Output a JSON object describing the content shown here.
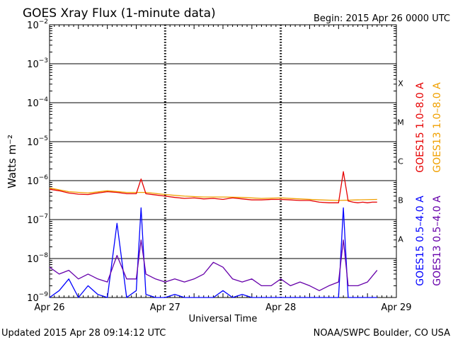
{
  "header": {
    "title": "GOES Xray Flux (1-minute data)",
    "begin": "Begin:  2015 Apr 26 0000 UTC"
  },
  "footer": {
    "updated": "Updated 2015 Apr 28 09:14:12 UTC",
    "credit": "NOAA/SWPC Boulder, CO USA"
  },
  "colors": {
    "goes15_long": "#e60000",
    "goes13_long": "#f0a000",
    "goes15_short": "#0000ff",
    "goes13_short": "#6600aa"
  },
  "chart_data": {
    "type": "line",
    "title": "GOES Xray Flux (1-minute data)",
    "xlabel": "Universal Time",
    "ylabel": "Watts m⁻²",
    "yscale": "log",
    "ylim": [
      1e-09,
      0.01
    ],
    "xlim": [
      "2015-04-26T00:00",
      "2015-04-29T00:00"
    ],
    "x_ticks": [
      "Apr 26",
      "Apr 27",
      "Apr 28",
      "Apr 29"
    ],
    "y_ticks": [
      {
        "base": "10",
        "exp": "−9"
      },
      {
        "base": "10",
        "exp": "−8"
      },
      {
        "base": "10",
        "exp": "−7"
      },
      {
        "base": "10",
        "exp": "−6"
      },
      {
        "base": "10",
        "exp": "−5"
      },
      {
        "base": "10",
        "exp": "−4"
      },
      {
        "base": "10",
        "exp": "−3"
      },
      {
        "base": "10",
        "exp": "−2"
      }
    ],
    "flare_classes": [
      "A",
      "B",
      "C",
      "M",
      "X"
    ],
    "grid": true,
    "series": [
      {
        "name": "GOES15 1.0–8.0 A",
        "x_hours": [
          0,
          2,
          4,
          6,
          8,
          10,
          12,
          14,
          16,
          18,
          19,
          20,
          22,
          24,
          26,
          28,
          30,
          32,
          34,
          36,
          38,
          40,
          42,
          44,
          46,
          48,
          50,
          52,
          54,
          56,
          58,
          60,
          61,
          62,
          63,
          64,
          65,
          66,
          67,
          68
        ],
        "y": [
          6e-07,
          5.5e-07,
          4.8e-07,
          4.5e-07,
          4.4e-07,
          4.8e-07,
          5.2e-07,
          5e-07,
          4.6e-07,
          4.6e-07,
          1.1e-06,
          4.6e-07,
          4.3e-07,
          4e-07,
          3.7e-07,
          3.5e-07,
          3.6e-07,
          3.4e-07,
          3.5e-07,
          3.3e-07,
          3.6e-07,
          3.4e-07,
          3.2e-07,
          3.2e-07,
          3.3e-07,
          3.3e-07,
          3.2e-07,
          3.1e-07,
          3.1e-07,
          2.8e-07,
          2.7e-07,
          2.7e-07,
          1.7e-06,
          3e-07,
          2.8e-07,
          2.7e-07,
          2.8e-07,
          2.7e-07,
          2.8e-07,
          2.8e-07
        ]
      },
      {
        "name": "GOES13 1.0–8.0 A",
        "x_hours": [
          0,
          4,
          8,
          12,
          16,
          20,
          24,
          28,
          32,
          36,
          40,
          44,
          48,
          52,
          56,
          60,
          64,
          68
        ],
        "y": [
          6.5e-07,
          5.2e-07,
          4.8e-07,
          5.5e-07,
          5e-07,
          5e-07,
          4.4e-07,
          4e-07,
          3.8e-07,
          3.8e-07,
          3.7e-07,
          3.5e-07,
          3.6e-07,
          3.4e-07,
          3.2e-07,
          3.1e-07,
          3.2e-07,
          3.3e-07
        ]
      },
      {
        "name": "GOES15 0.5–4.0 A",
        "x_hours": [
          0,
          2,
          4,
          6,
          8,
          10,
          12,
          14,
          16,
          18,
          19,
          20,
          22,
          24,
          26,
          28,
          30,
          32,
          34,
          36,
          38,
          40,
          42,
          44,
          46,
          48,
          50,
          52,
          54,
          56,
          58,
          60,
          61,
          62,
          64,
          66,
          68
        ],
        "y": [
          1e-09,
          1.5e-09,
          3e-09,
          1e-09,
          2e-09,
          1.2e-09,
          1e-09,
          8e-08,
          1e-09,
          1.5e-09,
          2e-07,
          1.2e-09,
          1e-09,
          1e-09,
          1.2e-09,
          1e-09,
          1e-09,
          1e-09,
          1e-09,
          1.5e-09,
          1e-09,
          1.2e-09,
          1e-09,
          1e-09,
          1e-09,
          1e-09,
          1e-09,
          1e-09,
          1e-09,
          1e-09,
          1e-09,
          1e-09,
          2e-07,
          1e-09,
          1e-09,
          1e-09,
          1e-09
        ]
      },
      {
        "name": "GOES13 0.5–4.0 A",
        "x_hours": [
          0,
          2,
          4,
          6,
          8,
          10,
          12,
          14,
          16,
          18,
          19,
          20,
          22,
          24,
          26,
          28,
          30,
          32,
          34,
          36,
          38,
          40,
          42,
          44,
          46,
          48,
          50,
          52,
          54,
          56,
          58,
          60,
          61,
          62,
          64,
          66,
          68
        ],
        "y": [
          6e-09,
          4e-09,
          5e-09,
          3e-09,
          4e-09,
          3e-09,
          2.5e-09,
          1.2e-08,
          3e-09,
          3e-09,
          3e-08,
          4e-09,
          3e-09,
          2.5e-09,
          3e-09,
          2.5e-09,
          3e-09,
          4e-09,
          8e-09,
          6e-09,
          3e-09,
          2.5e-09,
          3e-09,
          2e-09,
          2e-09,
          3e-09,
          2e-09,
          2.5e-09,
          2e-09,
          1.5e-09,
          2e-09,
          2.5e-09,
          3e-08,
          2e-09,
          2e-09,
          2.5e-09,
          5e-09
        ]
      }
    ]
  }
}
